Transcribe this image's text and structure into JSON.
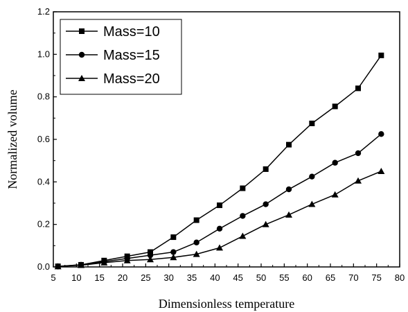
{
  "chart_data": {
    "type": "line",
    "xlabel": "Dimensionless temperature",
    "ylabel": "Normalized volume",
    "xlim": [
      5,
      80
    ],
    "ylim": [
      0.0,
      1.2
    ],
    "x_ticks": [
      "5",
      "10",
      "15",
      "20",
      "25",
      "30",
      "35",
      "40",
      "45",
      "50",
      "55",
      "60",
      "65",
      "70",
      "75",
      "80"
    ],
    "y_ticks": [
      "0.0",
      "0.2",
      "0.4",
      "0.6",
      "0.8",
      "1.0",
      "1.2"
    ],
    "grid": false,
    "legend_position": "top-left",
    "x": [
      6,
      11,
      16,
      21,
      26,
      31,
      36,
      41,
      46,
      51,
      56,
      61,
      66,
      71,
      76
    ],
    "series": [
      {
        "name": "Mass=10",
        "marker": "square",
        "values": [
          0.003,
          0.01,
          0.03,
          0.05,
          0.07,
          0.14,
          0.22,
          0.29,
          0.37,
          0.46,
          0.575,
          0.675,
          0.755,
          0.84,
          0.995
        ]
      },
      {
        "name": "Mass=15",
        "marker": "circle",
        "values": [
          0.002,
          0.01,
          0.025,
          0.04,
          0.055,
          0.07,
          0.115,
          0.18,
          0.24,
          0.295,
          0.365,
          0.425,
          0.49,
          0.535,
          0.625
        ]
      },
      {
        "name": "Mass=20",
        "marker": "triangle",
        "values": [
          0.002,
          0.008,
          0.02,
          0.03,
          0.035,
          0.045,
          0.06,
          0.09,
          0.145,
          0.2,
          0.245,
          0.295,
          0.34,
          0.405,
          0.45
        ]
      }
    ]
  }
}
